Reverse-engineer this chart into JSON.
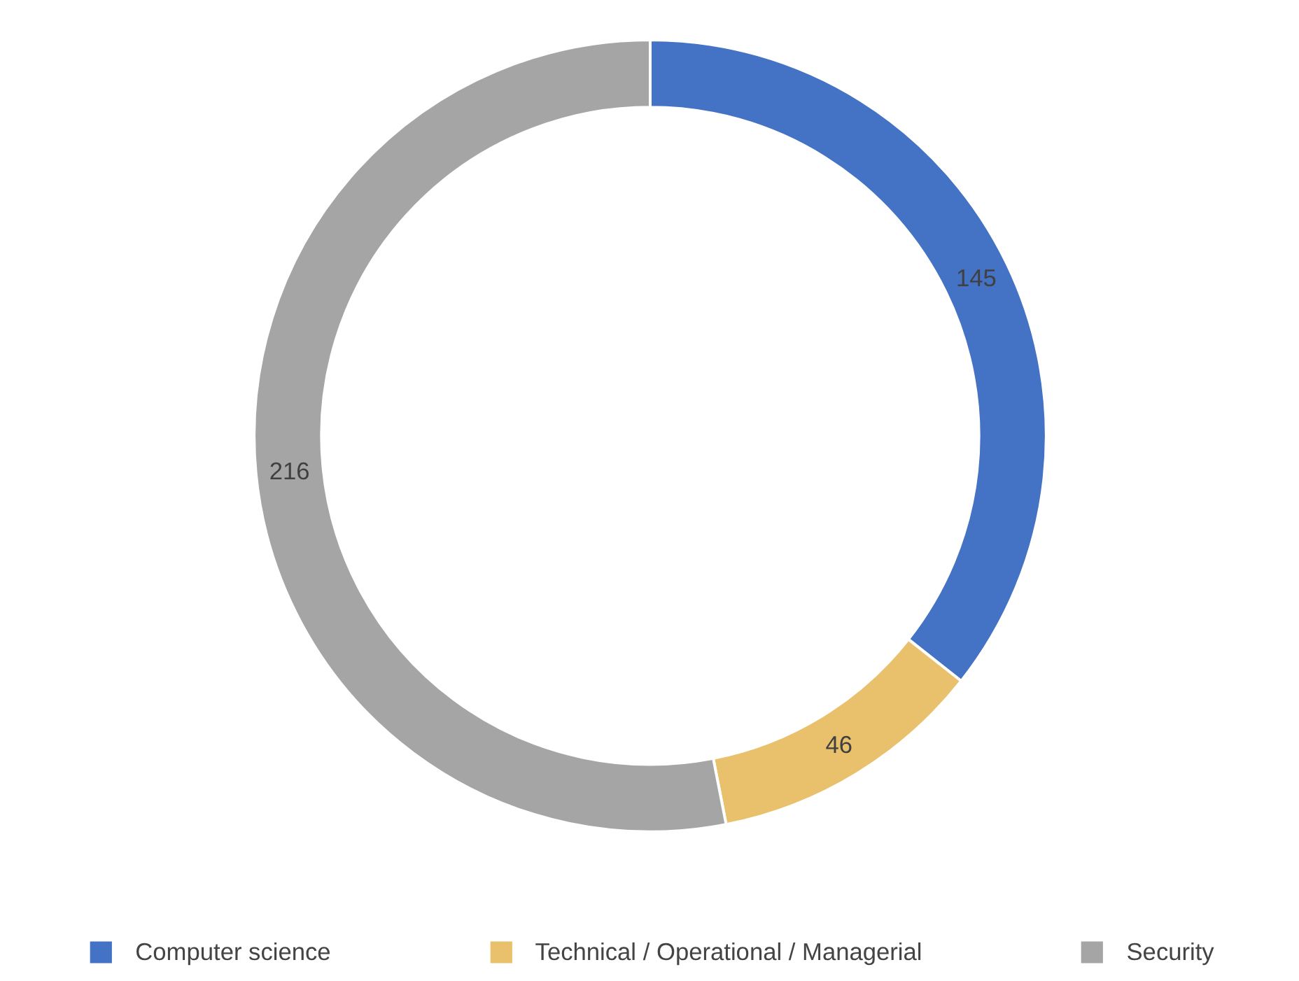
{
  "chart_data": {
    "type": "donut",
    "categories": [
      "Computer science",
      "Technical / Operational / Managerial",
      "Security"
    ],
    "values": [
      145,
      46,
      216
    ],
    "colors": [
      "#4472c4",
      "#e9c06c",
      "#a5a5a5"
    ],
    "data_labels": true,
    "legend": "bottom"
  }
}
